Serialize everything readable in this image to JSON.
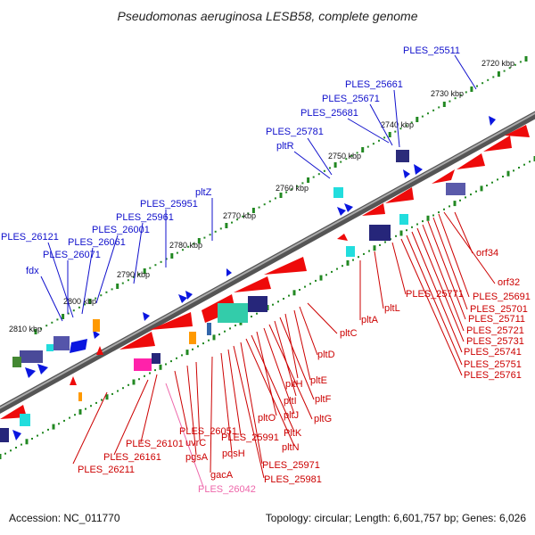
{
  "title": "Pseudomonas aeruginosa LESB58, complete genome",
  "footer": {
    "accession": "Accession: NC_011770",
    "summary": "Topology: circular; Length: 6,601,757 bp; Genes: 6,026"
  },
  "colors": {
    "forward_label": "#1010cc",
    "reverse_label": "#cc0000",
    "highlight_label": "#ee66aa",
    "backbone": "#777777",
    "tick": "#228822",
    "forward_gene": "#0a16e0",
    "reverse_gene": "#ee0a0a",
    "orange_gene": "#ff9900",
    "magenta_gene": "#ff22aa",
    "cyan_gene": "#22dddd",
    "teal_block": "#33ccaa",
    "dark_block": "#26267a"
  },
  "scale": {
    "unit": "kbp",
    "labels": [
      "2720 kbp",
      "2730 kbp",
      "2740 kbp",
      "2750 kbp",
      "2760 kbp",
      "2770 kbp",
      "2780 kbp",
      "2790 kbp",
      "2800 kbp",
      "2810 kbp"
    ]
  },
  "forward_genes": [
    "PLES_25511",
    "PLES_25661",
    "PLES_25671",
    "PLES_25681",
    "PLES_25781",
    "pltR",
    "pltZ",
    "PLES_25951",
    "PLES_25961",
    "PLES_26001",
    "PLES_26061",
    "PLES_26071",
    "PLES_26121",
    "fdx"
  ],
  "reverse_genes": [
    "orf34",
    "orf32",
    "PLES_25691",
    "PLES_25701",
    "PLES_25711",
    "PLES_25721",
    "PLES_25731",
    "PLES_25741",
    "PLES_25751",
    "PLES_25761",
    "PLES_25771",
    "pltL",
    "pltA",
    "pltC",
    "pltD",
    "pltE",
    "pltH",
    "pltF",
    "pltI",
    "pltG",
    "pltJ",
    "pltO",
    "PltK",
    "pltN",
    "PLES_25971",
    "PLES_25981",
    "PLES_25991",
    "pqsH",
    "gacA",
    "uvrC",
    "pgsA",
    "PLES_26051",
    "PLES_26101",
    "PLES_26161",
    "PLES_26211",
    "PLES_26042"
  ]
}
